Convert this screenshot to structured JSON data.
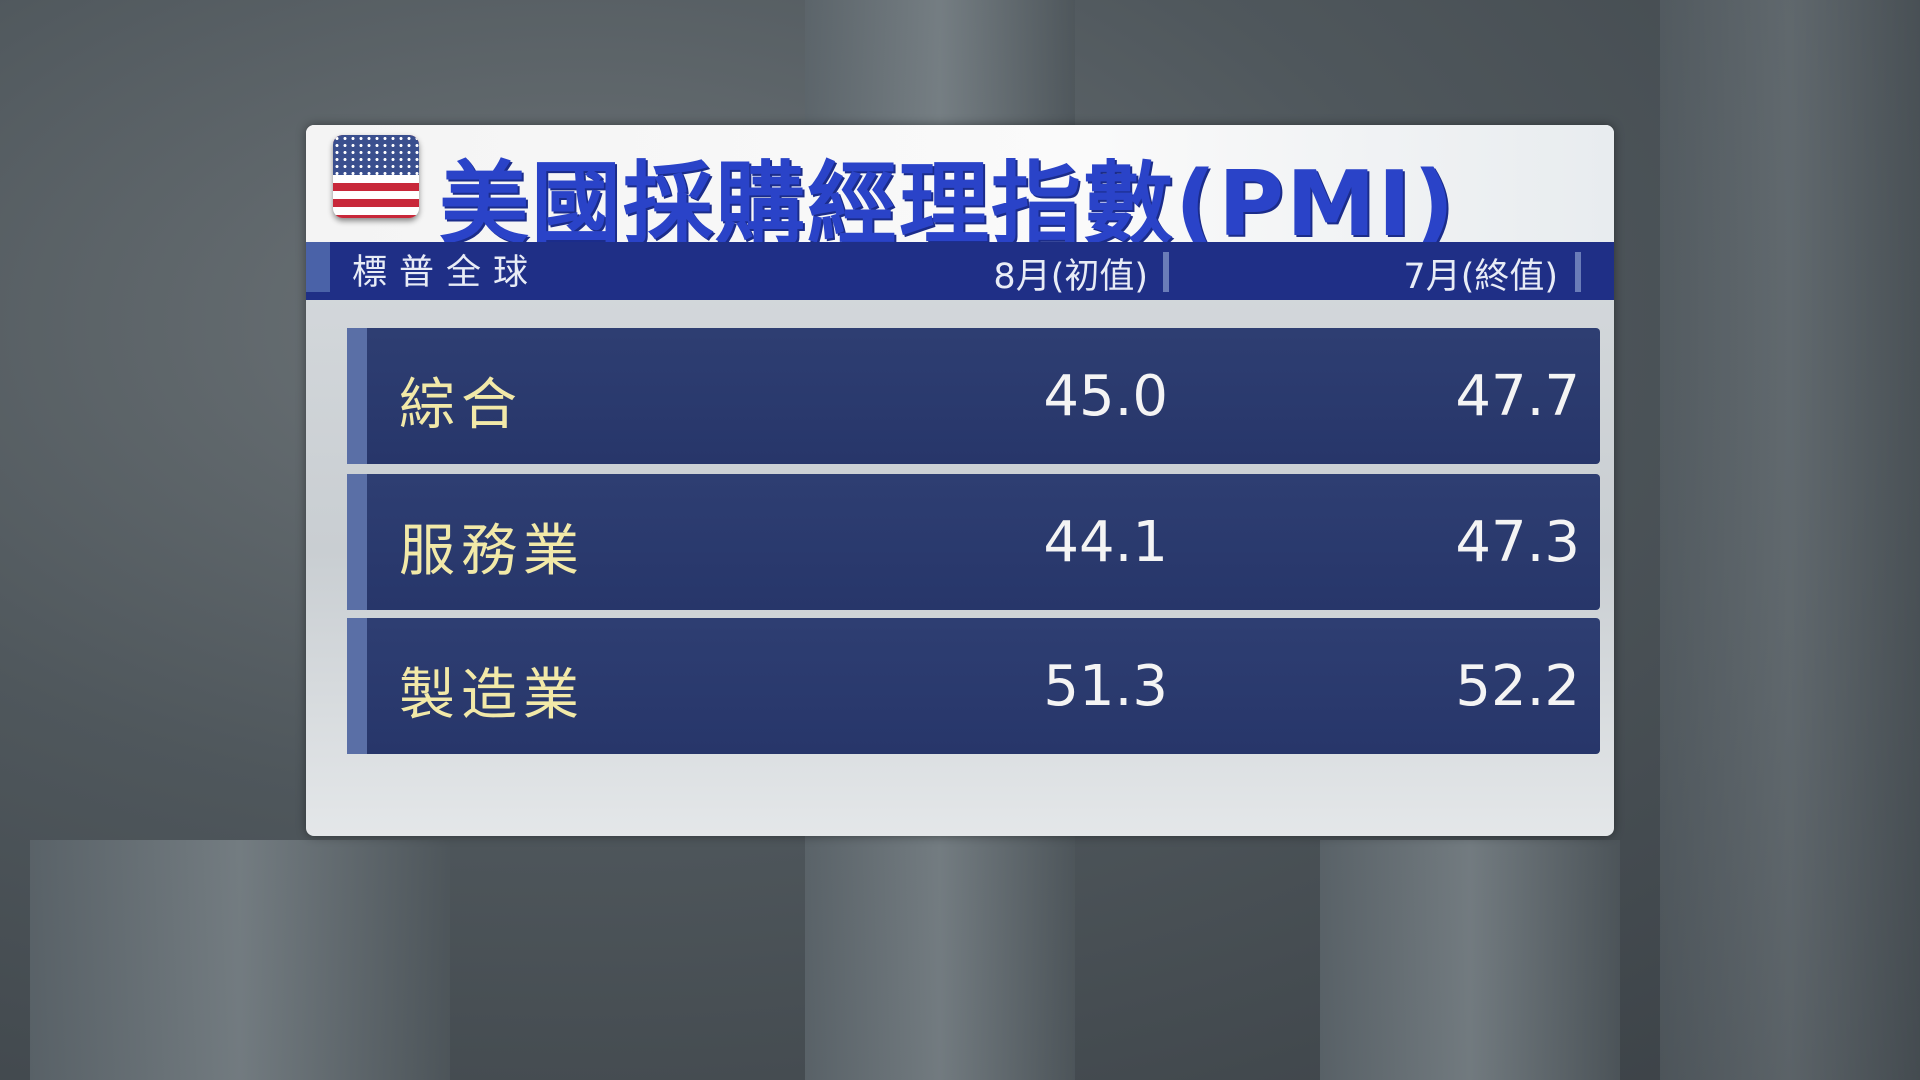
{
  "title": "美國採購經理指數(PMI)",
  "flag_icon": "us-flag-icon",
  "header": {
    "source": "標普全球",
    "col1": "8月(初值)",
    "col2": "7月(終值)"
  },
  "rows": [
    {
      "label": "綜合",
      "aug": "45.0",
      "jul": "47.7"
    },
    {
      "label": "服務業",
      "aug": "44.1",
      "jul": "47.3"
    },
    {
      "label": "製造業",
      "aug": "51.3",
      "jul": "52.2"
    }
  ],
  "colors": {
    "title": "#2a43c8",
    "header_bar": "#1f2f86",
    "row_bg": "#2a3a6c",
    "row_label": "#f2e9a8"
  }
}
